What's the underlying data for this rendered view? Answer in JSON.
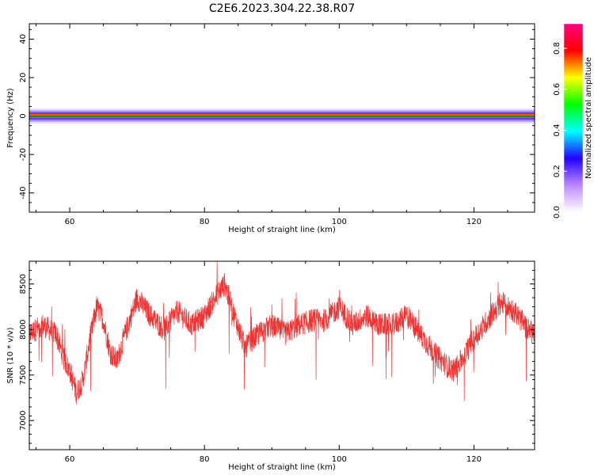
{
  "title": "C2E6.2023.304.22.38.R07",
  "chart_data": [
    {
      "type": "heatmap",
      "xlabel": "Height of straight line (km)",
      "ylabel": "Frequency (Hz)",
      "xlim": [
        54,
        129
      ],
      "ylim": [
        -50,
        48
      ],
      "xticks": [
        60,
        80,
        100,
        120
      ],
      "yticks": [
        -40,
        -20,
        0,
        20,
        40
      ],
      "band": {
        "center_hz": 0,
        "halfwidth_hz": [
          1,
          2,
          3,
          4
        ]
      },
      "colorbar": {
        "label": "Normalized spectral amplitude",
        "range": [
          0,
          0.92
        ],
        "ticks": [
          0.0,
          0.2,
          0.4,
          0.6,
          0.8
        ],
        "colors": [
          "#ffffff",
          "#bb88ff",
          "#2200ff",
          "#00ffff",
          "#00ff00",
          "#ffff00",
          "#ff0000",
          "#ff0080"
        ]
      }
    },
    {
      "type": "line",
      "xlabel": "Height of straight line (km)",
      "ylabel": "SNR (10 * v/v)",
      "xlim": [
        54,
        129
      ],
      "ylim": [
        6680,
        8750
      ],
      "xticks": [
        60,
        80,
        100,
        120
      ],
      "yticks": [
        7000,
        7500,
        8000,
        8500
      ],
      "color": "#ee3333",
      "x": [
        54,
        56,
        58,
        59,
        60,
        61,
        62,
        63,
        64,
        65,
        66,
        67,
        68,
        70,
        72,
        74,
        76,
        78,
        80,
        82,
        83,
        84,
        86,
        88,
        90,
        92,
        94,
        96,
        98,
        100,
        102,
        104,
        106,
        108,
        110,
        112,
        114,
        116,
        117,
        118,
        120,
        122,
        124,
        126,
        128,
        129
      ],
      "y": [
        7950,
        8050,
        7950,
        7700,
        7550,
        7300,
        7450,
        7900,
        8250,
        8100,
        7750,
        7650,
        7900,
        8350,
        8150,
        8000,
        8200,
        8050,
        8150,
        8400,
        8500,
        8250,
        7800,
        7950,
        8050,
        7950,
        8050,
        8100,
        8100,
        8250,
        8050,
        8150,
        8050,
        8050,
        8150,
        7950,
        7750,
        7600,
        7550,
        7650,
        7900,
        8100,
        8300,
        8200,
        8000,
        7950
      ]
    }
  ]
}
